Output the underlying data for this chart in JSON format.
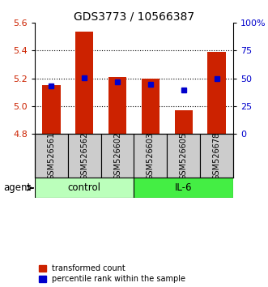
{
  "title": "GDS3773 / 10566387",
  "samples": [
    "GSM526561",
    "GSM526562",
    "GSM526602",
    "GSM526603",
    "GSM526605",
    "GSM526678"
  ],
  "red_values": [
    5.15,
    5.54,
    5.21,
    5.2,
    4.97,
    5.39
  ],
  "blue_values": [
    5.145,
    5.205,
    5.175,
    5.155,
    5.115,
    5.195
  ],
  "y_min": 4.8,
  "y_max": 5.6,
  "y_ticks_left": [
    4.8,
    5.0,
    5.2,
    5.4,
    5.6
  ],
  "y_ticks_right_labels": [
    "0",
    "25",
    "50",
    "75",
    "100%"
  ],
  "y_ticks_right_vals": [
    4.8,
    5.0,
    5.2,
    5.4,
    5.6
  ],
  "groups": [
    {
      "label": "control",
      "indices": [
        0,
        1,
        2
      ],
      "color": "#bbffbb"
    },
    {
      "label": "IL-6",
      "indices": [
        3,
        4,
        5
      ],
      "color": "#44ee44"
    }
  ],
  "bar_color": "#cc2200",
  "blue_color": "#0000cc",
  "bar_width": 0.55,
  "blue_marker_size": 5,
  "axis_label_color_left": "#cc2200",
  "axis_label_color_right": "#0000cc",
  "legend_red_label": "transformed count",
  "legend_blue_label": "percentile rank within the sample",
  "agent_label": "agent",
  "sample_box_color": "#cccccc"
}
